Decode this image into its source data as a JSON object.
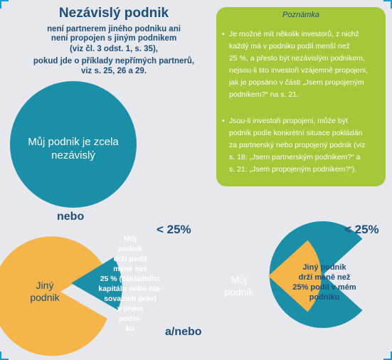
{
  "title": "Nezávislý podnik",
  "subtitle_lines": [
    "není partnerem jiného podniku ani",
    "není propojen s jiným podnikem",
    "(viz čl. 3 odst. 1, s. 35),",
    "pokud jde o příklady nepřímých partnerů,",
    "viz s. 25, 26 a 29."
  ],
  "note": {
    "title": "Poznámka",
    "bullet1_lines": [
      "Je možné mít několik investorů, z nichž",
      "každý má v podniku podíl menší než",
      "25 %, a přesto být nezávislým podnikem,",
      "nejsou-li tito investoři vzájemně propojeni,",
      "jak je popsáno v části „Jsem propojeným",
      "podnikem?“ na s. 21."
    ],
    "bullet2_lines": [
      "Jsou-li investoři propojeni, může být",
      "podnik podle konkrétní situace pokládán",
      "za partnerský nebo propojený podnik (viz",
      "s. 18: „Jsem partnerským podnikem?“ a",
      "s. 21: „Jsem propojeným podnikem?“)."
    ]
  },
  "circle1_lines": [
    "Můj podnik je zcela",
    "nezávislý"
  ],
  "nebo": "nebo",
  "ebo": "a/nebo",
  "lt25_left": "< 25%",
  "lt25_right": "< 25%",
  "jiny_lines": [
    "Jiný",
    "podnik"
  ],
  "left_slice_lines": [
    "Můj",
    "podnik",
    "drží podíl",
    "méně než",
    "25 % (základního",
    "kapitálu nebo hla-",
    "sovacích práv)",
    "v jiném",
    "podni-",
    "ku"
  ],
  "muj_lines": [
    "Můj",
    "podnik"
  ],
  "right_slice_lines": [
    "Jiný podnik",
    "drží méně než",
    "25% podíl v mém",
    "podniku"
  ],
  "colors": {
    "teal": "#1b8ea8",
    "orange": "#f5b54a",
    "green": "#a5c83a",
    "navy": "#1f4e79",
    "background": "#e6e8ee"
  }
}
